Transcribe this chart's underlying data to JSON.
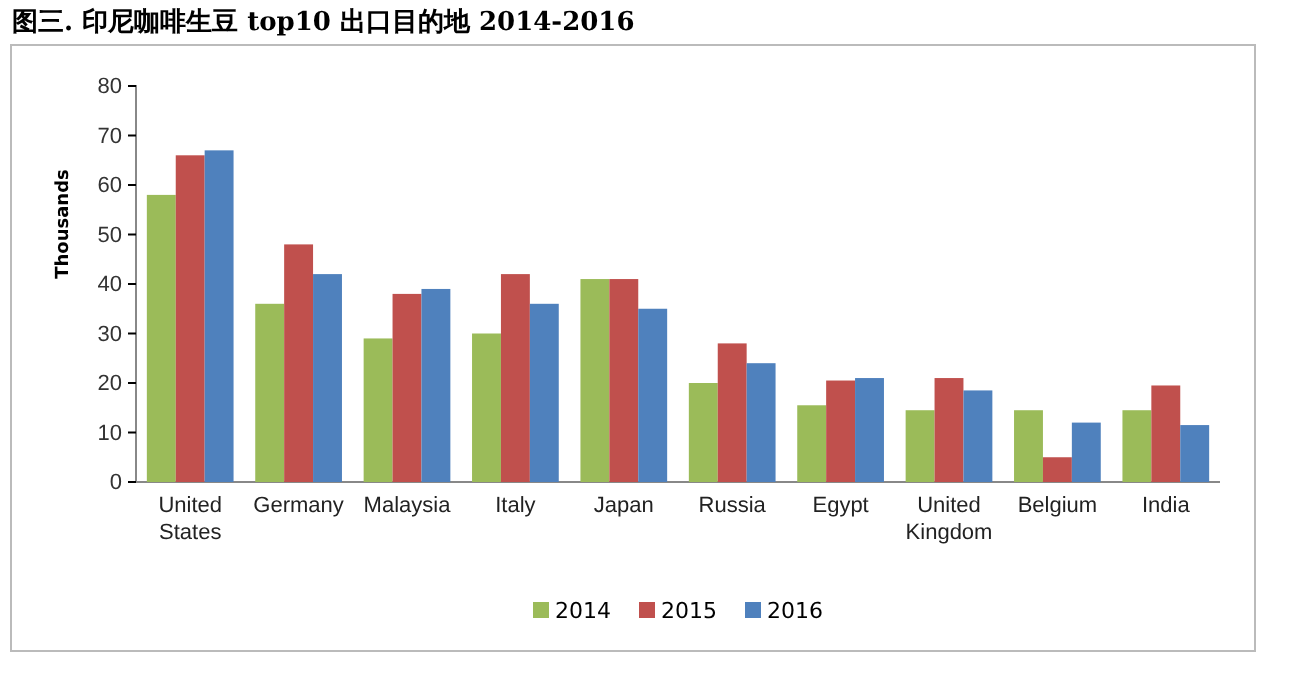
{
  "chart_data": {
    "type": "bar",
    "title": "图三. 印尼咖啡生豆 top10 出口目的地  2014-2016",
    "ylabel": "Thousands",
    "categories": [
      "United States",
      "Germany",
      "Malaysia",
      "Italy",
      "Japan",
      "Russia",
      "Egypt",
      "United Kingdom",
      "Belgium",
      "India"
    ],
    "series": [
      {
        "name": "2014",
        "color": "#9bbb59",
        "values": [
          58,
          36,
          29,
          30,
          41,
          20,
          15.5,
          14.5,
          14.5,
          14.5
        ]
      },
      {
        "name": "2015",
        "color": "#c0504d",
        "values": [
          66,
          48,
          38,
          42,
          41,
          28,
          20.5,
          21,
          5,
          19.5
        ]
      },
      {
        "name": "2016",
        "color": "#4f81bd",
        "values": [
          67,
          42,
          39,
          36,
          35,
          24,
          21,
          18.5,
          12,
          11.5
        ]
      }
    ],
    "ylim": [
      0,
      80
    ],
    "yticks": [
      0,
      10,
      20,
      30,
      40,
      50,
      60,
      70,
      80
    ],
    "grid": false,
    "legend": "bottom"
  }
}
